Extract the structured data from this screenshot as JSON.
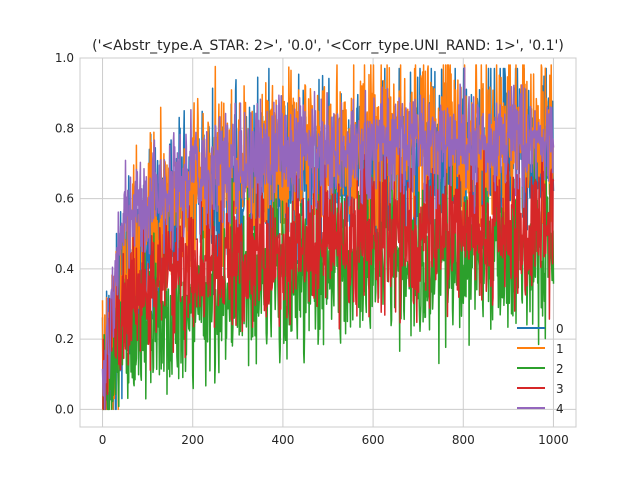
{
  "chart_data": {
    "type": "line",
    "title": "('<Abstr_type.A_STAR: 2>', '0.0', '<Corr_type.UNI_RAND: 1>', '0.1')",
    "xlabel": "",
    "ylabel": "",
    "xlim": [
      -50,
      1050
    ],
    "ylim": [
      -0.05,
      1.0
    ],
    "xticks": [
      0,
      200,
      400,
      600,
      800,
      1000
    ],
    "yticks": [
      0.0,
      0.2,
      0.4,
      0.6,
      0.8,
      1.0
    ],
    "xtick_labels": [
      "0",
      "200",
      "400",
      "600",
      "800",
      "1000"
    ],
    "ytick_labels": [
      "0.0",
      "0.2",
      "0.4",
      "0.6",
      "0.8",
      "1.0"
    ],
    "grid": true,
    "legend_position": "lower-right",
    "x_range": [
      0,
      1000
    ],
    "series": [
      {
        "name": "0",
        "color": "#1f77b4",
        "trend": [
          [
            0,
            0.05
          ],
          [
            50,
            0.38
          ],
          [
            100,
            0.48
          ],
          [
            200,
            0.58
          ],
          [
            300,
            0.62
          ],
          [
            400,
            0.66
          ],
          [
            600,
            0.7
          ],
          [
            800,
            0.72
          ],
          [
            1000,
            0.74
          ]
        ],
        "noise": 0.13,
        "min": 0.0,
        "max": 0.97
      },
      {
        "name": "1",
        "color": "#ff7f0e",
        "trend": [
          [
            0,
            0.05
          ],
          [
            50,
            0.38
          ],
          [
            100,
            0.5
          ],
          [
            200,
            0.6
          ],
          [
            300,
            0.65
          ],
          [
            400,
            0.7
          ],
          [
            600,
            0.75
          ],
          [
            800,
            0.77
          ],
          [
            1000,
            0.78
          ]
        ],
        "noise": 0.13,
        "min": 0.0,
        "max": 0.98
      },
      {
        "name": "2",
        "color": "#2ca02c",
        "trend": [
          [
            0,
            0.03
          ],
          [
            50,
            0.18
          ],
          [
            100,
            0.25
          ],
          [
            200,
            0.3
          ],
          [
            300,
            0.35
          ],
          [
            400,
            0.38
          ],
          [
            600,
            0.42
          ],
          [
            800,
            0.44
          ],
          [
            1000,
            0.45
          ]
        ],
        "noise": 0.11,
        "min": 0.0,
        "max": 0.8
      },
      {
        "name": "3",
        "color": "#d62728",
        "trend": [
          [
            0,
            0.1
          ],
          [
            50,
            0.3
          ],
          [
            100,
            0.35
          ],
          [
            200,
            0.4
          ],
          [
            300,
            0.43
          ],
          [
            400,
            0.47
          ],
          [
            600,
            0.5
          ],
          [
            800,
            0.52
          ],
          [
            1000,
            0.53
          ]
        ],
        "noise": 0.1,
        "min": 0.0,
        "max": 0.75
      },
      {
        "name": "4",
        "color": "#9467bd",
        "trend": [
          [
            0,
            0.1
          ],
          [
            50,
            0.55
          ],
          [
            100,
            0.6
          ],
          [
            200,
            0.66
          ],
          [
            300,
            0.7
          ],
          [
            400,
            0.73
          ],
          [
            600,
            0.75
          ],
          [
            800,
            0.76
          ],
          [
            1000,
            0.77
          ]
        ],
        "noise": 0.08,
        "min": 0.0,
        "max": 0.98
      }
    ]
  }
}
